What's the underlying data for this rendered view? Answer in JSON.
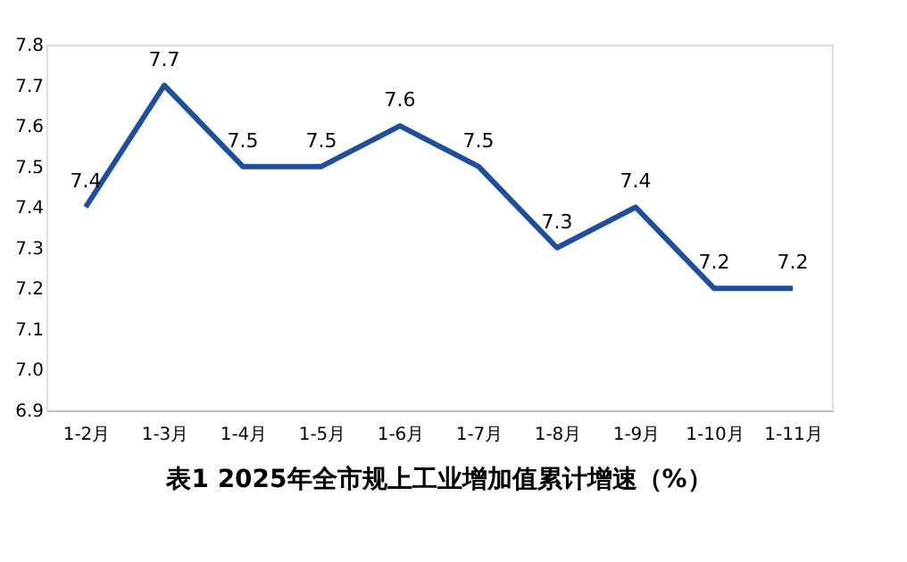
{
  "chart_data": {
    "type": "line",
    "title": "表1   2025年全市规上工业增加值累计增速（%）",
    "categories": [
      "1-2月",
      "1-3月",
      "1-4月",
      "1-5月",
      "1-6月",
      "1-7月",
      "1-8月",
      "1-9月",
      "1-10月",
      "1-11月"
    ],
    "series": [
      {
        "color": "#1f4e9a",
        "values": [
          7.4,
          7.7,
          7.5,
          7.5,
          7.6,
          7.5,
          7.3,
          7.4,
          7.2,
          7.2
        ]
      }
    ],
    "ylim": [
      6.9,
      7.8
    ],
    "yticks": [
      {
        "value": 6.9,
        "label": "6.9"
      },
      {
        "value": 7.0,
        "label": "7.0"
      },
      {
        "value": 7.1,
        "label": "7.1"
      },
      {
        "value": 7.2,
        "label": "7.2"
      },
      {
        "value": 7.3,
        "label": "7.3"
      },
      {
        "value": 7.4,
        "label": "7.4"
      },
      {
        "value": 7.5,
        "label": "7.5"
      },
      {
        "value": 7.6,
        "label": "7.6"
      },
      {
        "value": 7.7,
        "label": "7.7"
      },
      {
        "value": 7.8,
        "label": "7.8"
      }
    ],
    "data_labels": true,
    "grid": false,
    "marker": "none",
    "line_style": "solid"
  }
}
